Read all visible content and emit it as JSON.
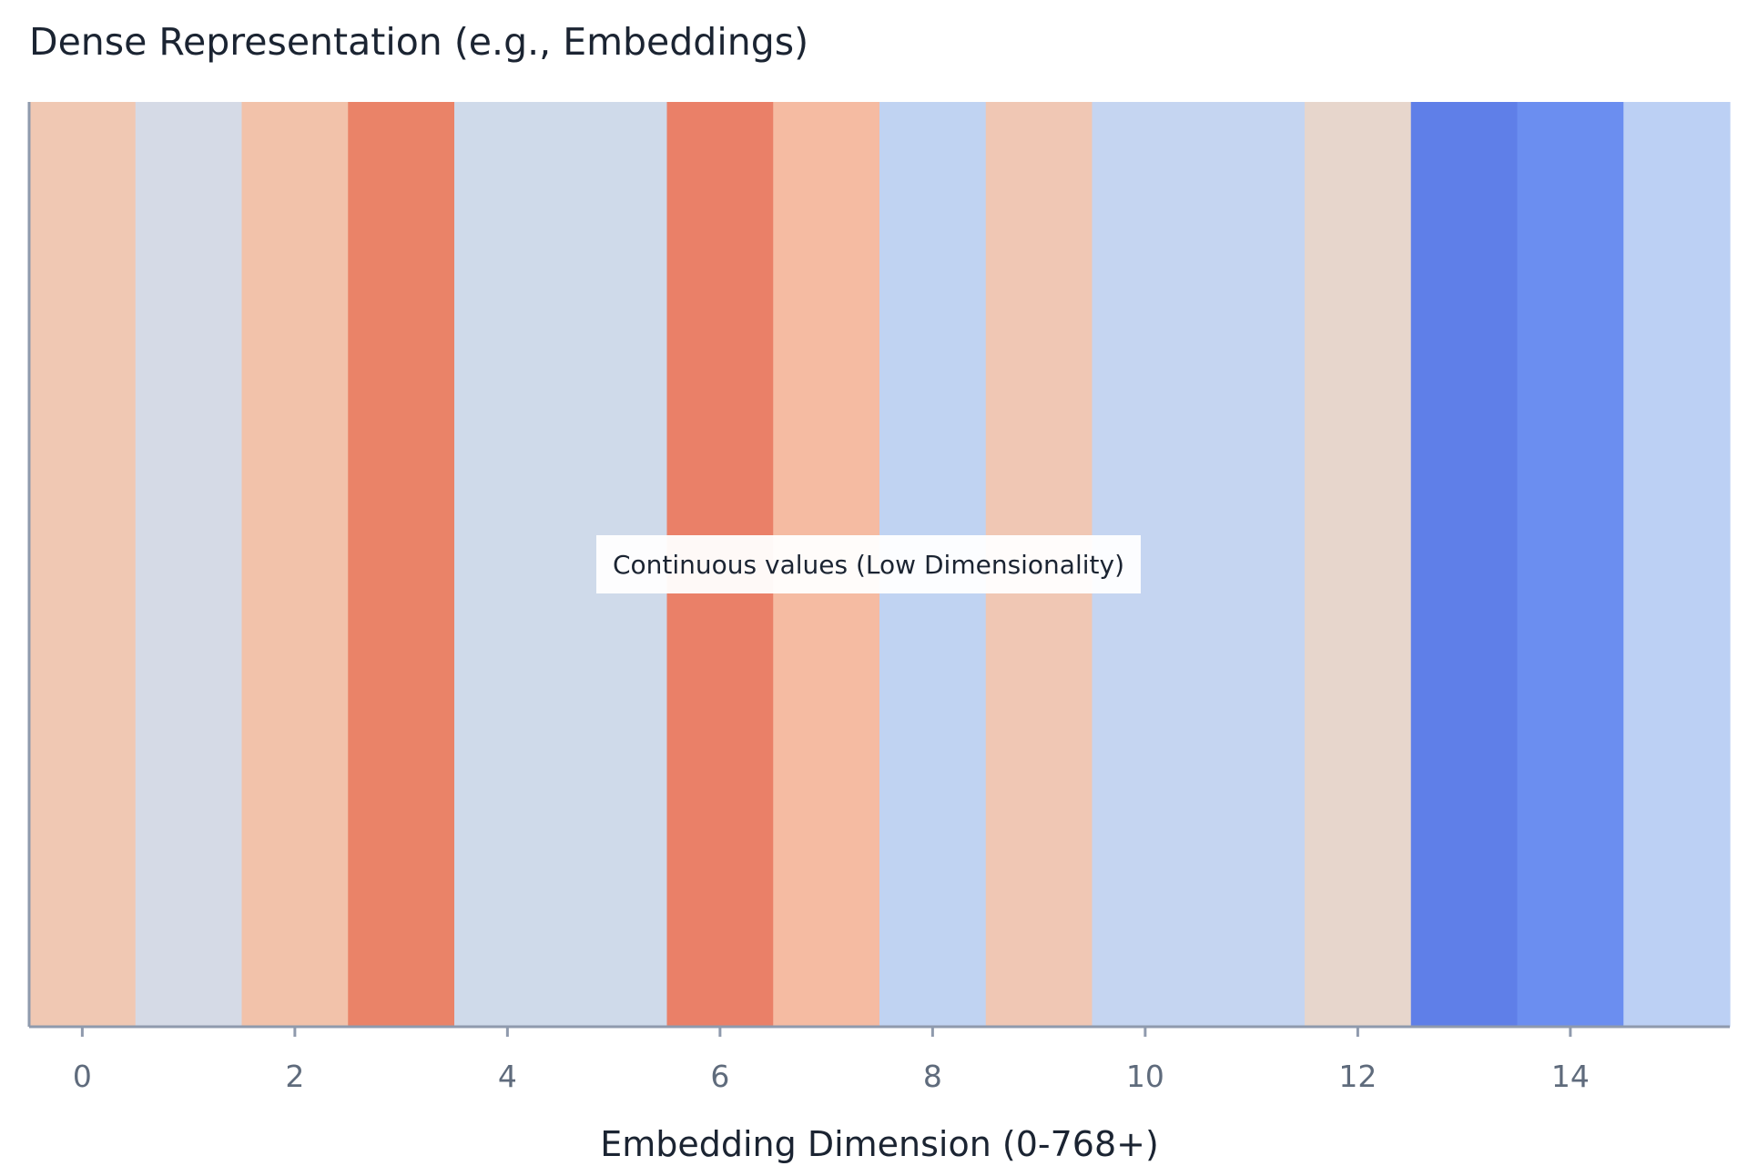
{
  "chart_data": {
    "type": "heatmap",
    "title": "Dense Representation (e.g., Embeddings)",
    "xlabel": "Embedding Dimension (0-768+)",
    "ylabel": "",
    "xlim": [
      -0.5,
      15.5
    ],
    "x_ticks": [
      0,
      2,
      4,
      6,
      8,
      10,
      12,
      14
    ],
    "x_tick_labels": [
      "0",
      "2",
      "4",
      "6",
      "8",
      "10",
      "12",
      "14"
    ],
    "colorscale": "coolwarm",
    "cells": [
      {
        "dimension": 0,
        "color": "#f0c8b3"
      },
      {
        "dimension": 1,
        "color": "#d5dae6"
      },
      {
        "dimension": 2,
        "color": "#f2c2aa"
      },
      {
        "dimension": 3,
        "color": "#ea8368"
      },
      {
        "dimension": 4,
        "color": "#cfdaea"
      },
      {
        "dimension": 5,
        "color": "#cfdaea"
      },
      {
        "dimension": 6,
        "color": "#ea8068"
      },
      {
        "dimension": 7,
        "color": "#f5bba2"
      },
      {
        "dimension": 8,
        "color": "#c0d3f2"
      },
      {
        "dimension": 9,
        "color": "#f0c7b4"
      },
      {
        "dimension": 10,
        "color": "#c5d5f1"
      },
      {
        "dimension": 11,
        "color": "#c5d5f1"
      },
      {
        "dimension": 12,
        "color": "#e7d6cc"
      },
      {
        "dimension": 13,
        "color": "#5f7fe8"
      },
      {
        "dimension": 14,
        "color": "#6b8ef0"
      },
      {
        "dimension": 15,
        "color": "#bcd0f4"
      }
    ],
    "annotation": "Continuous values (Low Dimensionality)",
    "grid": false
  }
}
